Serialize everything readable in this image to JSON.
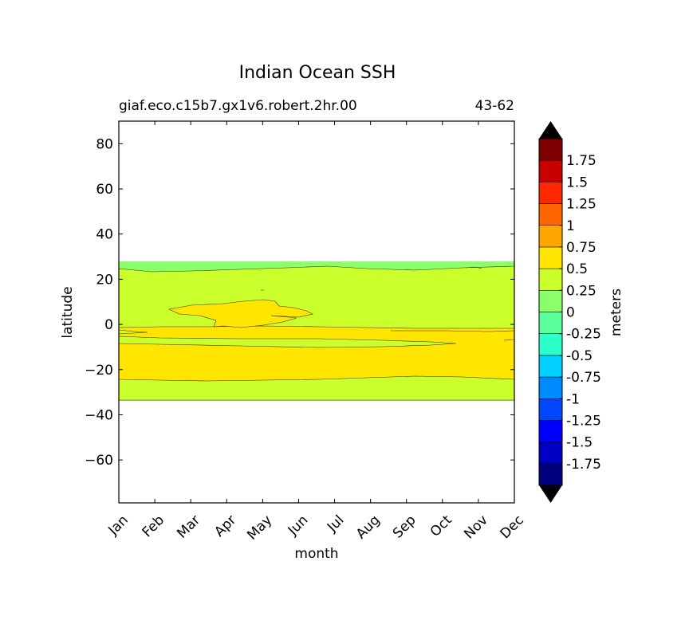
{
  "chart_data": {
    "type": "contour",
    "title": "Indian Ocean SSH",
    "subtitle_left": "giaf.eco.c15b7.gx1v6.robert.2hr.00",
    "subtitle_right": "43-62",
    "xlabel": "month",
    "ylabel": "latitude",
    "x_tick_labels": [
      "Jan",
      "Feb",
      "Mar",
      "Apr",
      "May",
      "Jun",
      "Jul",
      "Aug",
      "Sep",
      "Oct",
      "Nov",
      "Dec"
    ],
    "y_ticks": [
      80,
      60,
      40,
      20,
      0,
      -20,
      -40,
      -60
    ],
    "y_tick_labels": [
      "80",
      "60",
      "40",
      "20",
      "0",
      "−20",
      "−40",
      "−60"
    ],
    "ylim": [
      -79,
      90
    ],
    "colorbar": {
      "label": "meters",
      "levels": [
        -2,
        -1.75,
        -1.5,
        -1.25,
        -1,
        -0.75,
        -0.5,
        -0.25,
        0,
        0.25,
        0.5,
        0.75,
        1,
        1.25,
        1.5,
        1.75,
        2
      ],
      "tick_labels": [
        "1.75",
        "1.5",
        "1.25",
        "1",
        "0.75",
        "0.5",
        "0.25",
        "0",
        "-0.25",
        "-0.5",
        "-0.75",
        "-1",
        "-1.25",
        "-1.5",
        "-1.75"
      ],
      "colors": [
        "#00007f",
        "#0000c5",
        "#0000ff",
        "#0046ff",
        "#008aff",
        "#00d0ff",
        "#2bffcb",
        "#5bff9b",
        "#8bff6a",
        "#caff2c",
        "#ffe500",
        "#ffa700",
        "#ff6600",
        "#ff2800",
        "#c90000",
        "#7f0000"
      ],
      "extend": "both",
      "extend_color": "#000000"
    },
    "regions": [
      {
        "level": "0 to 0.25",
        "color": "#8bff6a",
        "lat_range": [
          -34,
          27.5
        ]
      },
      {
        "level": "0.25 to 0.5",
        "color": "#caff2c",
        "lat_range": [
          -34,
          24
        ]
      },
      {
        "level": "0.5 to 0.75",
        "color": "#ffe500",
        "lat_range": [
          -25,
          -1
        ]
      },
      {
        "level": "0.5 to 0.75",
        "color": "#ffe500",
        "lat_range": [
          0,
          10
        ],
        "months": "Mar-Jun"
      }
    ]
  }
}
